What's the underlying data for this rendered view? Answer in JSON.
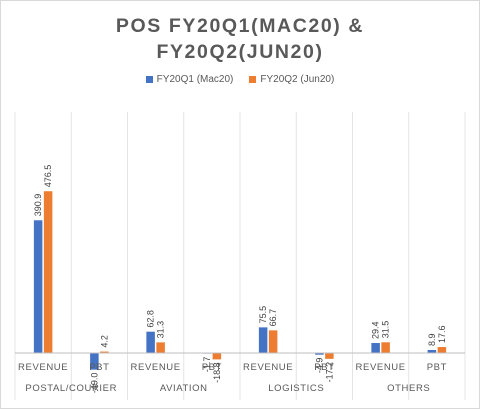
{
  "chart_data": {
    "type": "bar",
    "title_line1": "POS FY20Q1(MAC20) &",
    "title_line2": "FY20Q2(JUN20)",
    "legend_position": "top",
    "grid": false,
    "groups": [
      "POSTAL/COURIER",
      "AVIATION",
      "LOGISTICS",
      "OTHERS"
    ],
    "categories": [
      "REVENUE",
      "PBT",
      "REVENUE",
      "PBT",
      "REVENUE",
      "PBT",
      "REVENUE",
      "PBT"
    ],
    "series": [
      {
        "name": "FY20Q1 (Mac20)",
        "color": "#4472c4",
        "values": [
          390.9,
          -49.0,
          62.8,
          -1.7,
          75.5,
          -4.9,
          29.4,
          8.9
        ],
        "labels": [
          "390.9",
          "-49.0",
          "62.8",
          "-1.7",
          "75.5",
          "-4.9",
          "29.4",
          "8.9"
        ]
      },
      {
        "name": "FY20Q2 (Jun20)",
        "color": "#ed7d31",
        "values": [
          476.5,
          4.2,
          31.3,
          -18.8,
          66.7,
          -17.2,
          31.5,
          17.6
        ],
        "labels": [
          "476.5",
          "4.2",
          "31.3",
          "-18.8",
          "66.7",
          "-17.2",
          "31.5",
          "17.6"
        ]
      }
    ],
    "ylim": [
      -60,
      500
    ]
  }
}
